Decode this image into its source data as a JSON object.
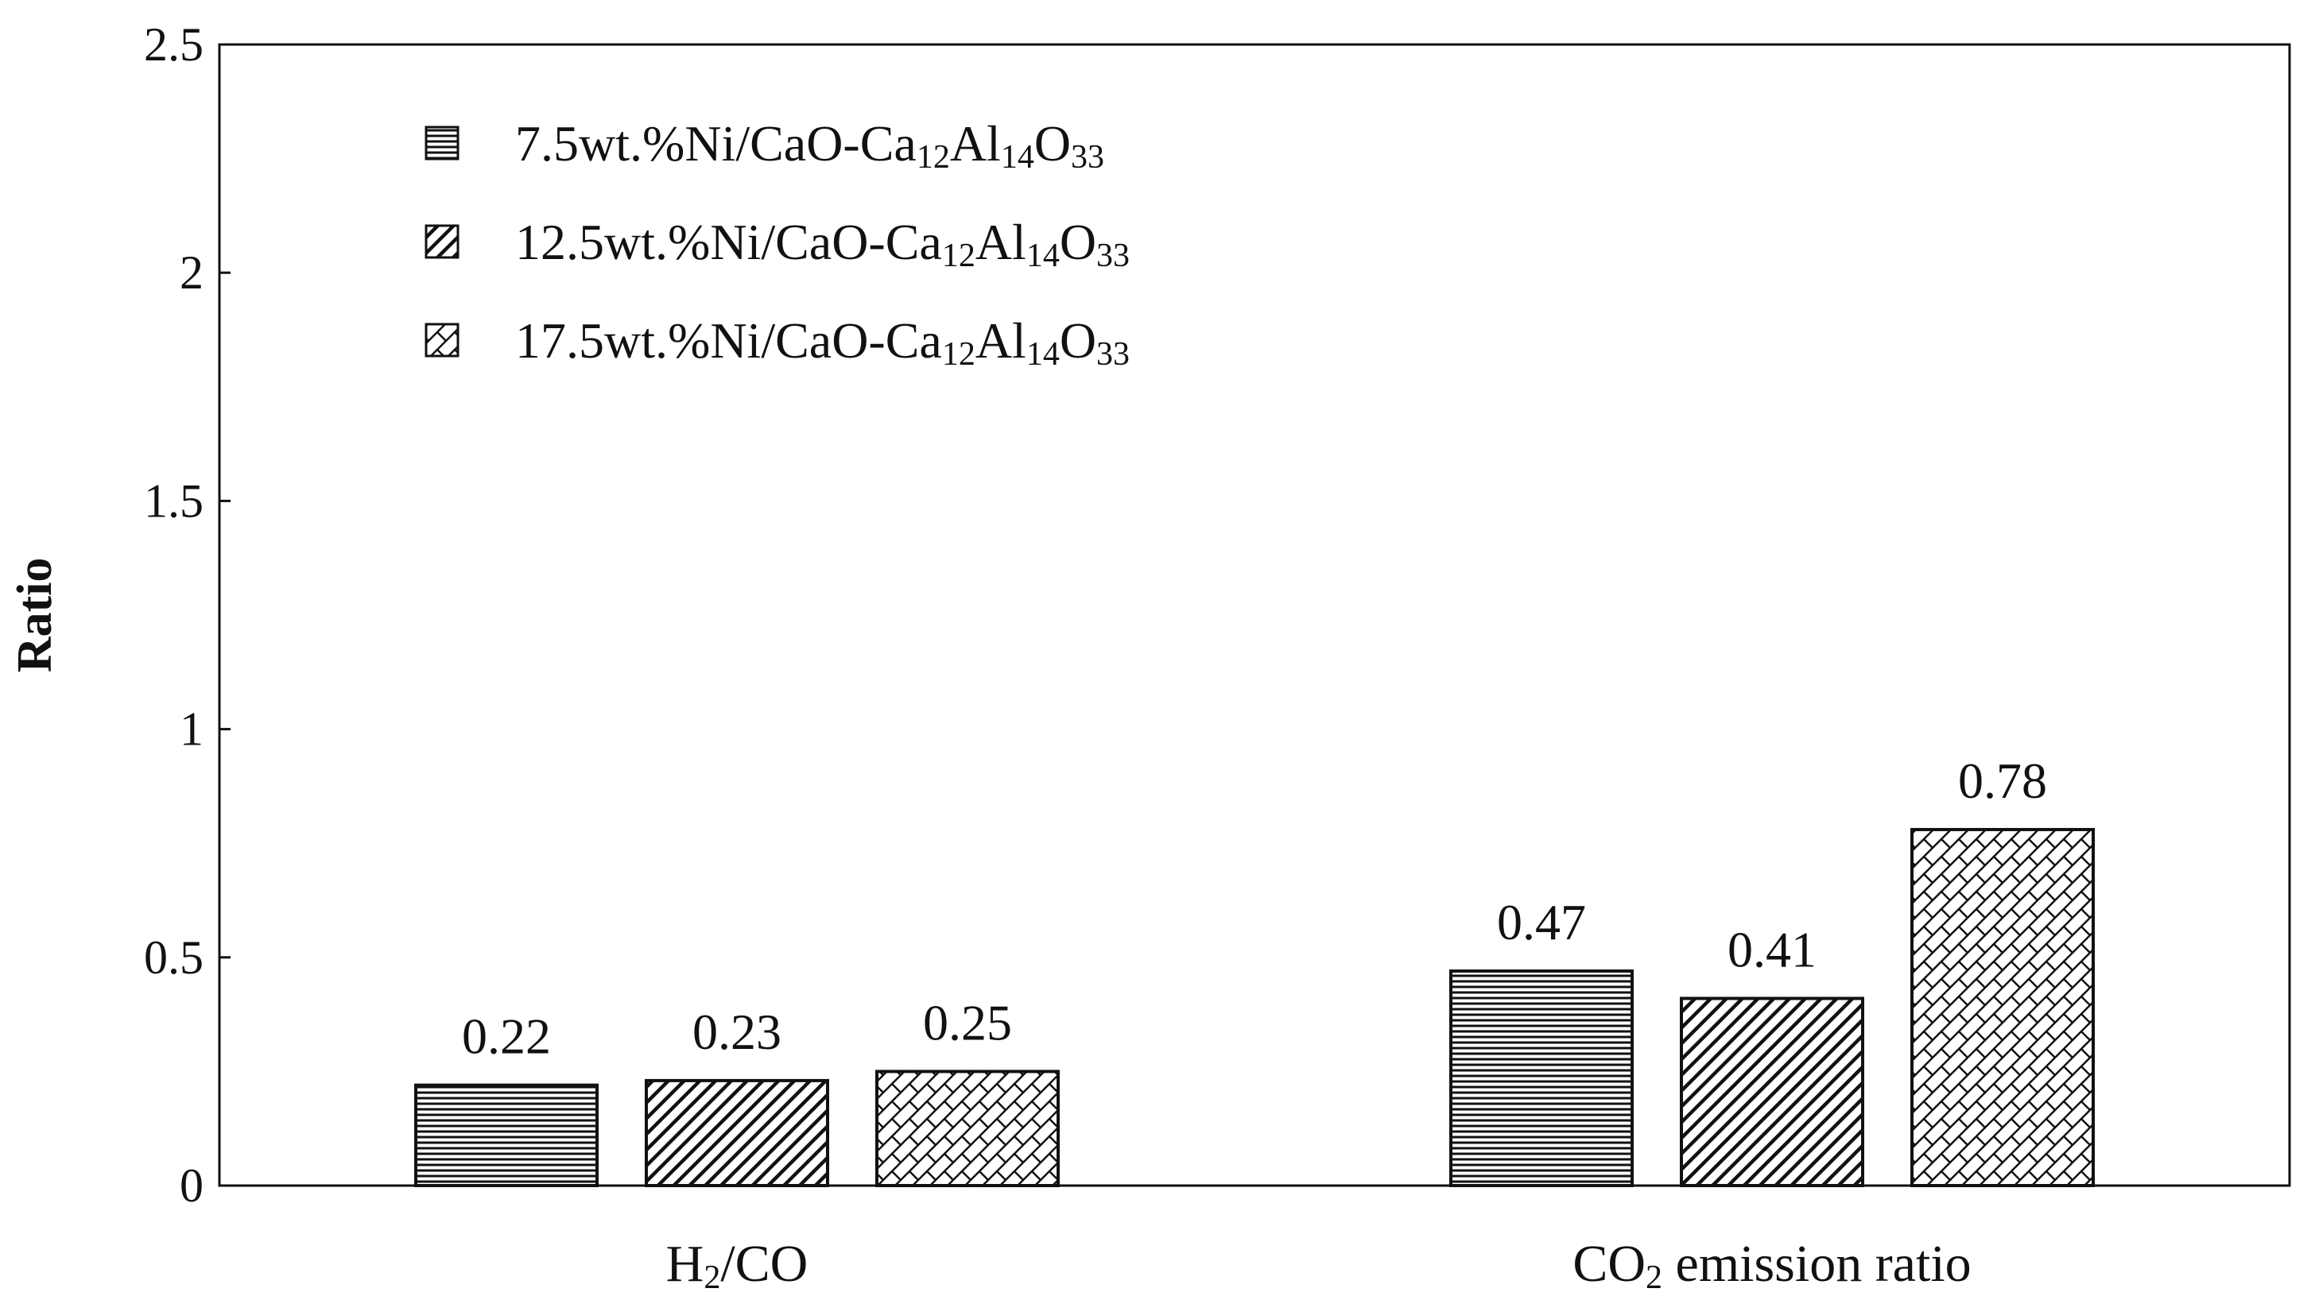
{
  "chart_data": {
    "type": "bar",
    "title": "",
    "xlabel": "",
    "ylabel": "Ratio",
    "ylim": [
      0,
      2.5
    ],
    "yticks": [
      0,
      0.5,
      1,
      1.5,
      2,
      2.5
    ],
    "ytick_labels": [
      "0",
      "0.5",
      "1",
      "1.5",
      "2",
      "2.5"
    ],
    "grid": false,
    "legend_position": "top-left",
    "categories": [
      {
        "parts": [
          {
            "t": "H"
          },
          {
            "t": "2",
            "sub": true
          },
          {
            "t": "/CO"
          }
        ]
      },
      {
        "parts": [
          {
            "t": "CO"
          },
          {
            "t": "2",
            "sub": true
          },
          {
            "t": " emission ratio"
          }
        ]
      }
    ],
    "series": [
      {
        "name": "7.5wt.%Ni/CaO-Ca12Al14O33",
        "name_parts": [
          {
            "t": "7.5wt.%Ni/CaO-Ca"
          },
          {
            "t": "12",
            "sub": true
          },
          {
            "t": "Al"
          },
          {
            "t": "14",
            "sub": true
          },
          {
            "t": "O"
          },
          {
            "t": "33",
            "sub": true
          }
        ],
        "pattern": "horizontal",
        "values": [
          0.22,
          0.47
        ],
        "labels": [
          "0.22",
          "0.47"
        ]
      },
      {
        "name": "12.5wt.%Ni/CaO-Ca12Al14O33",
        "name_parts": [
          {
            "t": "12.5wt.%Ni/CaO-Ca"
          },
          {
            "t": "12",
            "sub": true
          },
          {
            "t": "Al"
          },
          {
            "t": "14",
            "sub": true
          },
          {
            "t": "O"
          },
          {
            "t": "33",
            "sub": true
          }
        ],
        "pattern": "diagonal",
        "values": [
          0.23,
          0.41
        ],
        "labels": [
          "0.23",
          "0.41"
        ]
      },
      {
        "name": "17.5wt.%Ni/CaO-Ca12Al14O33",
        "name_parts": [
          {
            "t": "17.5wt.%Ni/CaO-Ca"
          },
          {
            "t": "12",
            "sub": true
          },
          {
            "t": "Al"
          },
          {
            "t": "14",
            "sub": true
          },
          {
            "t": "O"
          },
          {
            "t": "33",
            "sub": true
          }
        ],
        "pattern": "crosshatch",
        "values": [
          0.25,
          0.78
        ],
        "labels": [
          "0.25",
          "0.78"
        ]
      }
    ],
    "colors": {
      "stroke": "#111111",
      "background": "#ffffff"
    }
  }
}
